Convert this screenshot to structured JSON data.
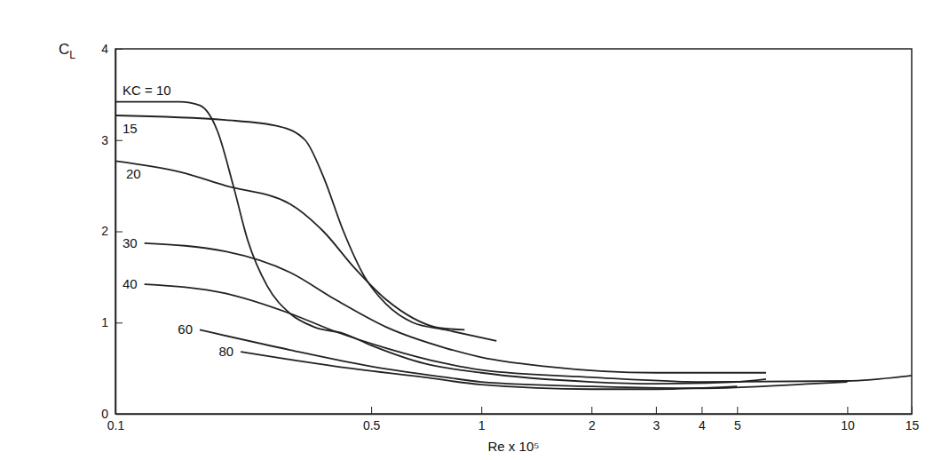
{
  "chart_data": {
    "type": "line",
    "x_label": "Re x 10⁵",
    "y_label": "CL",
    "log": "x",
    "grid": false,
    "xlim": [
      0.1,
      15
    ],
    "ylim": [
      0,
      4
    ],
    "xticks": [
      0.1,
      0.5,
      1,
      2,
      3,
      4,
      5,
      10,
      15
    ],
    "yticks": [
      0,
      1,
      2,
      3,
      4
    ],
    "series": [
      {
        "name": "KC = 10",
        "color": "#222222",
        "x": [
          0.1,
          0.15,
          0.17,
          0.19,
          0.21,
          0.23,
          0.26,
          0.3,
          0.35,
          0.42,
          0.5,
          0.7,
          1,
          2,
          3,
          5,
          6
        ],
        "values": [
          3.42,
          3.42,
          3.38,
          3.1,
          2.5,
          1.9,
          1.4,
          1.1,
          0.95,
          0.88,
          0.75,
          0.55,
          0.45,
          0.35,
          0.33,
          0.35,
          0.38
        ]
      },
      {
        "name": "15",
        "color": "#222222",
        "x": [
          0.1,
          0.2,
          0.28,
          0.33,
          0.37,
          0.42,
          0.48,
          0.55,
          0.65,
          0.8,
          1.1
        ],
        "values": [
          3.27,
          3.22,
          3.15,
          3.0,
          2.6,
          2.0,
          1.5,
          1.2,
          1.0,
          0.92,
          0.8
        ]
      },
      {
        "name": "20",
        "color": "#222222",
        "x": [
          0.1,
          0.15,
          0.2,
          0.3,
          0.37,
          0.45,
          0.55,
          0.65,
          0.75,
          0.9
        ],
        "values": [
          2.77,
          2.65,
          2.5,
          2.3,
          2.0,
          1.6,
          1.25,
          1.05,
          0.95,
          0.92
        ]
      },
      {
        "name": "30",
        "color": "#222222",
        "x": [
          0.12,
          0.2,
          0.3,
          0.4,
          0.55,
          0.8,
          1,
          1.5,
          3,
          6
        ],
        "values": [
          1.87,
          1.78,
          1.55,
          1.25,
          0.95,
          0.72,
          0.62,
          0.52,
          0.45,
          0.45
        ]
      },
      {
        "name": "40",
        "color": "#222222",
        "x": [
          0.12,
          0.2,
          0.3,
          0.4,
          0.55,
          0.8,
          1,
          2,
          4,
          10,
          15
        ],
        "values": [
          1.42,
          1.32,
          1.1,
          0.9,
          0.72,
          0.55,
          0.48,
          0.4,
          0.35,
          0.36,
          0.42
        ]
      },
      {
        "name": "60",
        "color": "#222222",
        "x": [
          0.17,
          0.3,
          0.5,
          0.8,
          1,
          2,
          4,
          8,
          10
        ],
        "values": [
          0.92,
          0.7,
          0.52,
          0.4,
          0.35,
          0.3,
          0.28,
          0.33,
          0.35
        ]
      },
      {
        "name": "80",
        "color": "#222222",
        "x": [
          0.22,
          0.4,
          0.7,
          1,
          2,
          3,
          5
        ],
        "values": [
          0.68,
          0.52,
          0.4,
          0.32,
          0.27,
          0.27,
          0.3
        ]
      }
    ]
  }
}
